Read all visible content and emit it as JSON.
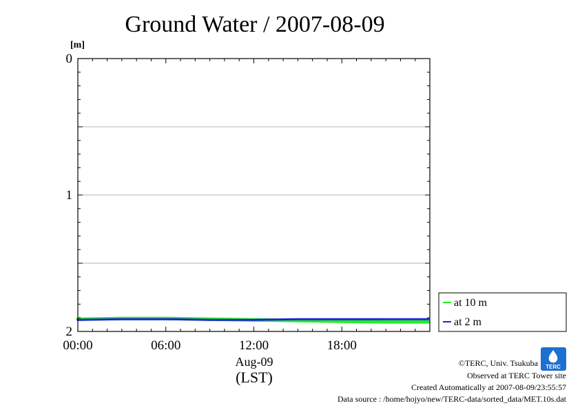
{
  "chart_data": {
    "type": "line",
    "title": "Ground Water / 2007-08-09",
    "ylabel": "[m]",
    "ylim": [
      0,
      2
    ],
    "y_inverted": true,
    "y_ticks": [
      "0",
      "1",
      "2"
    ],
    "y_gridlines": [
      0.5,
      1.0,
      1.5
    ],
    "xlim": [
      0,
      24
    ],
    "x_ticks": [
      {
        "value": 0,
        "label": "00:00"
      },
      {
        "value": 6,
        "label": "06:00"
      },
      {
        "value": 12,
        "label": "12:00"
      },
      {
        "value": 18,
        "label": "18:00"
      }
    ],
    "xlabel_date": "Aug-09",
    "xlabel": "(LST)",
    "grid": true,
    "legend_position": "right",
    "series": [
      {
        "name": "at 10 m",
        "color": "#22ee22",
        "x": [
          0,
          3,
          6,
          9,
          12,
          15,
          18,
          21,
          23.9
        ],
        "values": [
          1.91,
          1.905,
          1.905,
          1.91,
          1.915,
          1.92,
          1.925,
          1.93,
          1.93
        ]
      },
      {
        "name": "at 2 m",
        "color": "#2222dd",
        "x": [
          0,
          3,
          6,
          9,
          12,
          15,
          18,
          21,
          23.9
        ],
        "values": [
          1.915,
          1.91,
          1.91,
          1.915,
          1.915,
          1.91,
          1.91,
          1.91,
          1.91
        ]
      }
    ]
  },
  "credits": {
    "copyright": "©TERC, Univ. Tsukuba",
    "observed": "Observed at TERC Tower site",
    "created": "Created Automatically at 2007-08-09/23:55:57",
    "source": "Data source : /home/hojyo/new/TERC-data/sorted_data/MET.10s.dat",
    "logo_text": "TERC"
  }
}
